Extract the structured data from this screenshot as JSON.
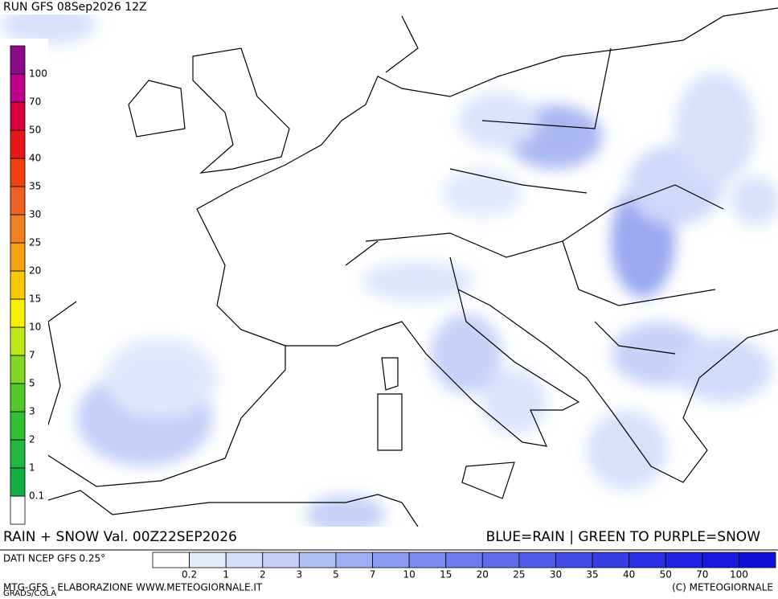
{
  "header": {
    "title": "RUN GFS 08Sep2026 12Z"
  },
  "snow_scale": {
    "labels": [
      "0.1",
      "1",
      "2",
      "3",
      "5",
      "7",
      "10",
      "15",
      "20",
      "25",
      "30",
      "35",
      "40",
      "50",
      "70",
      "100"
    ],
    "colors": [
      "#ffffff",
      "#10b040",
      "#20b840",
      "#30c030",
      "#50c828",
      "#80d820",
      "#c0e818",
      "#f8f000",
      "#f8c800",
      "#f8a010",
      "#f08020",
      "#f06020",
      "#f04010",
      "#e81818",
      "#d8003c",
      "#c0008c",
      "#8b0a8b"
    ]
  },
  "caption": {
    "left": "RAIN + SNOW Val. 00Z22SEP2026",
    "right": "BLUE=RAIN | GREEN TO PURPLE=SNOW"
  },
  "rain_scale": {
    "title": "DATI NCEP GFS 0.25°",
    "labels": [
      "0.2",
      "1",
      "2",
      "3",
      "5",
      "7",
      "10",
      "15",
      "20",
      "25",
      "30",
      "35",
      "40",
      "50",
      "70",
      "100"
    ],
    "colors": [
      "#ffffff",
      "#e4ecfc",
      "#d4defa",
      "#c4d0f8",
      "#b0bff6",
      "#9eaef4",
      "#8c9cf2",
      "#7c8cf0",
      "#6c7cee",
      "#5e6cec",
      "#505cea",
      "#424ce8",
      "#363ee6",
      "#2a30e4",
      "#2024e2",
      "#1818e0",
      "#1010d8"
    ]
  },
  "footer": {
    "credit": "MTG-GFS - ELABORAZIONE WWW.METEOGIORNALE.IT",
    "software": "GRADS/COLA",
    "copyright": "(C) METEOGIORNALE"
  }
}
